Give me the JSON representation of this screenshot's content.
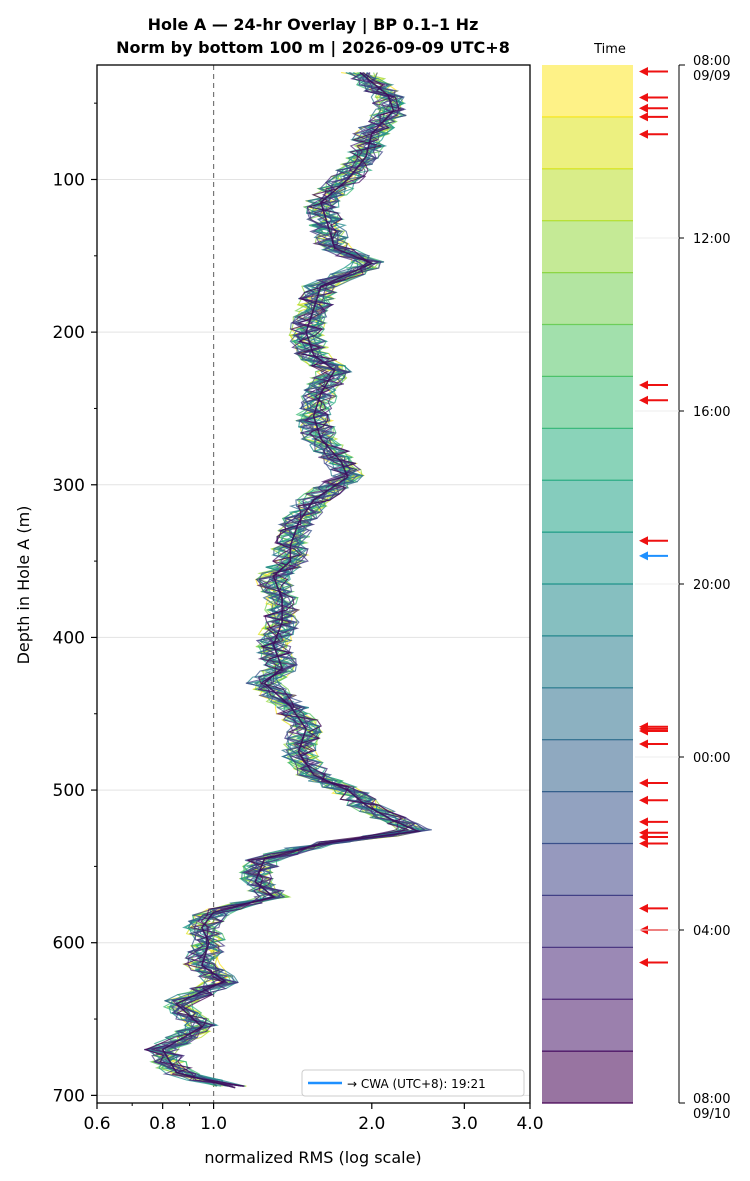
{
  "title_line1": "Hole A — 24-hr Overlay  |  BP 0.1–1 Hz",
  "title_line2": "Norm by bottom 100 m  |  2026-09-09 UTC+8",
  "time_label": "Time",
  "chart_data": {
    "type": "line",
    "xlabel": "normalized RMS  (log scale)",
    "ylabel": "Depth in Hole A (m)",
    "xscale": "log",
    "xlim": [
      0.6,
      4.0
    ],
    "ylim": [
      705,
      25
    ],
    "x_ticks": [
      "0.6",
      "0.8",
      "1.0",
      "2.0",
      "3.0",
      "4.0"
    ],
    "y_ticks": [
      "100",
      "200",
      "300",
      "400",
      "500",
      "600",
      "700"
    ],
    "reference_line_x": 1.0,
    "grid": "horizontal",
    "legend": {
      "placement": "bottom-right",
      "label": "→ CWA (UTC+8): 19:21"
    },
    "profile_depths": [
      30,
      45,
      55,
      70,
      85,
      100,
      115,
      130,
      145,
      155,
      170,
      185,
      200,
      215,
      225,
      240,
      255,
      270,
      285,
      295,
      310,
      325,
      340,
      350,
      360,
      375,
      390,
      405,
      420,
      430,
      445,
      460,
      475,
      490,
      500,
      510,
      520,
      527,
      535,
      545,
      560,
      570,
      580,
      590,
      600,
      615,
      625,
      640,
      655,
      670,
      685,
      695
    ],
    "profile_values": [
      1.9,
      2.15,
      2.2,
      2.0,
      1.95,
      1.8,
      1.6,
      1.65,
      1.7,
      2.0,
      1.6,
      1.55,
      1.5,
      1.55,
      1.7,
      1.6,
      1.55,
      1.6,
      1.75,
      1.8,
      1.55,
      1.45,
      1.4,
      1.4,
      1.3,
      1.35,
      1.35,
      1.3,
      1.35,
      1.25,
      1.4,
      1.5,
      1.45,
      1.55,
      1.8,
      1.95,
      2.2,
      2.45,
      1.6,
      1.25,
      1.2,
      1.3,
      1.0,
      0.95,
      0.98,
      0.95,
      1.05,
      0.85,
      0.95,
      0.8,
      0.85,
      1.1
    ],
    "colorbar": {
      "start": "08:00\n09/09",
      "end": "08:00\n09/10",
      "ticks": [
        "12:00",
        "16:00",
        "20:00",
        "00:00",
        "04:00"
      ],
      "colors": [
        "#fde725",
        "#dde318",
        "#bade28",
        "#95d840",
        "#75d054",
        "#56c667",
        "#3dbc74",
        "#29af7f",
        "#20a386",
        "#1f968b",
        "#238a8d",
        "#287d8e",
        "#2d718e",
        "#33638d",
        "#39558c",
        "#404688",
        "#453781",
        "#482878",
        "#481769",
        "#440154"
      ]
    },
    "event_hours": [
      0.15,
      0.75,
      1.0,
      1.2,
      1.6,
      7.4,
      7.75,
      11.0,
      11.35,
      15.3,
      15.35,
      15.4,
      15.7,
      16.6,
      17.0,
      17.5,
      17.75,
      17.85,
      18.0,
      19.5,
      20.0,
      20.75
    ],
    "cwa_event_hour": 11.35
  }
}
